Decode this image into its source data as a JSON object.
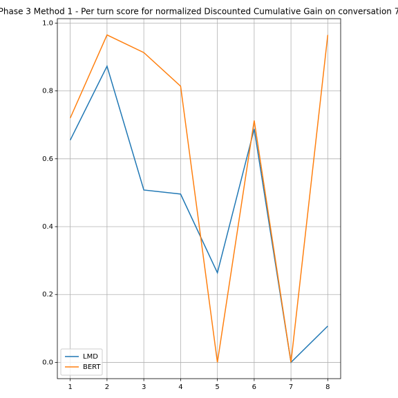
{
  "chart_data": {
    "type": "line",
    "title": "Phase 3 Method 1 - Per turn score for normalized Discounted Cumulative Gain on conversation 7",
    "x": [
      1,
      2,
      3,
      4,
      5,
      6,
      7,
      8
    ],
    "series": [
      {
        "name": "LMD",
        "color": "#1f77b4",
        "values": [
          0.655,
          0.873,
          0.508,
          0.496,
          0.264,
          0.688,
          0.0,
          0.107
        ]
      },
      {
        "name": "BERT",
        "color": "#ff7f0e",
        "values": [
          0.72,
          0.965,
          0.913,
          0.814,
          0.0,
          0.713,
          0.0,
          0.965
        ]
      }
    ],
    "xlim": [
      0.65,
      8.35
    ],
    "xticks": [
      1,
      2,
      3,
      4,
      5,
      6,
      7,
      8
    ],
    "ylim": [
      -0.048,
      1.013
    ],
    "yticks": [
      {
        "value": 0,
        "label": "0.0"
      },
      {
        "value": 0.2,
        "label": "0.2"
      },
      {
        "value": 0.4,
        "label": "0.4"
      },
      {
        "value": 0.6,
        "label": "0.6"
      },
      {
        "value": 0.8,
        "label": "0.8"
      },
      {
        "value": 1,
        "label": "1.0"
      }
    ],
    "grid": true,
    "legend": "lower left"
  }
}
